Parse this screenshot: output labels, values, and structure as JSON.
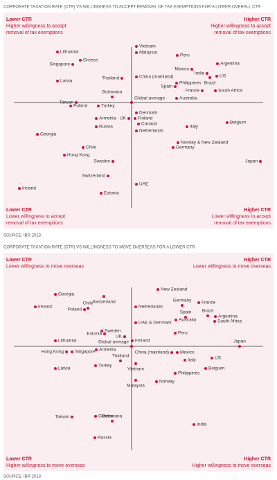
{
  "chart_data": [
    {
      "type": "scatter",
      "title": "CORPORATE TAXATION RATE (CTR) VS WILLINGNESS TO ACCEPT REMOVAL OF TAX EXEMPTIONS FOR A LOWER OVERALL CTR",
      "source": "SOURCE: IBR 2013",
      "color": "#d4124e",
      "xlim": [
        -185,
        205
      ],
      "ylim": [
        -182,
        130
      ],
      "quadrants": {
        "top_left": [
          "Lower CTR",
          "Higher willingness to accept",
          "removal of tax exemptions"
        ],
        "top_right": [
          "Higher CTR",
          "Higher willingness to accept",
          "removal of tax exemptions"
        ],
        "bottom_left": [
          "Lower CTR",
          "Lower willingness to accept",
          "removal of tax exemptions"
        ],
        "bottom_right": [
          "Higher CTR",
          "Lower willingness to accept",
          "removal of tax exemptions"
        ]
      },
      "labels": [
        "Vietnam",
        "Malaysia",
        "Peru",
        "Lithuania",
        "Greece",
        "Argentina",
        "Singapore",
        "Mexico",
        "India",
        "US",
        "Brazil",
        "Thailand",
        "China (mainland)",
        "Latvia",
        "Philippines",
        "Spain",
        "France",
        "South Africa",
        "Botswana",
        "Global average",
        "Australia",
        "Taiwan",
        "Poland",
        "Turkey",
        "Denmark",
        "Armenia",
        "UK",
        "Finland",
        "Canada",
        "Belgium",
        "Russia",
        "Italy",
        "Netherlands",
        "Georgia",
        "Norway & New Zealand",
        "Germany",
        "Chile",
        "Hong Kong",
        "Sweden",
        "Japan",
        "Switzerland",
        "UAE",
        "Ireland",
        "Estonia"
      ],
      "x": [
        7,
        7,
        66,
        -107,
        -74,
        124,
        -85,
        87,
        109,
        123,
        113,
        -14,
        7,
        -107,
        65,
        63,
        102,
        121,
        -28,
        0,
        65,
        -80,
        -88,
        -48,
        7,
        -51,
        -4,
        5,
        10,
        138,
        -51,
        80,
        7,
        -136,
        67,
        60,
        -70,
        -97,
        -27,
        186,
        -34,
        7,
        -162,
        -44
      ],
      "y": [
        81,
        72,
        68,
        73,
        61,
        56,
        55,
        48,
        42,
        38,
        36,
        35,
        37,
        31,
        28,
        23,
        17,
        17,
        8,
        0,
        6,
        0,
        -5,
        -5,
        -15,
        -23,
        -23,
        -23,
        -31,
        -29,
        -35,
        -35,
        -41,
        -46,
        -58,
        -65,
        -65,
        -76,
        -85,
        -85,
        -106,
        -118,
        -124,
        -131
      ]
    },
    {
      "type": "scatter",
      "title": "CORPORATE TAXATION RATE (CTR) VS WILLINGNESS TO MOVE OVERSEAS FOR A LOWER CTR",
      "source": "SOURCE: IBR 2013",
      "color": "#d4124e",
      "xlim": [
        -185,
        205
      ],
      "ylim": [
        -180,
        135
      ],
      "quadrants": {
        "top_left": [
          "Lower CTR",
          "Lower willingness to move overseas"
        ],
        "top_right": [
          "Higher CTR",
          "Lower willingness to move overseas"
        ],
        "bottom_left": [
          "Lower CTR",
          "Higher willingness to move overseas"
        ],
        "bottom_right": [
          "Higher CTR",
          "Higher willingness to move overseas"
        ]
      },
      "labels": [
        "New Zealand",
        "Georgia",
        "Switzerland",
        "Germany",
        "France",
        "Netherlands",
        "Ireland",
        "Chile",
        "Poland",
        "Spain",
        "Brazil",
        "Argentina",
        "Australia",
        "UAE & Denmark",
        "South Africa",
        "Sweden",
        "Estonia",
        "UK",
        "Peru",
        "Lithuania",
        "Finland",
        "Global average",
        "Japan",
        "Armenia",
        "Hong Kong",
        "Singapore",
        "China (mainland)",
        "Mexico",
        "US",
        "Thailand",
        "Italy",
        "Turkey",
        "Latvia",
        "Vietnam",
        "Belgium",
        "Philippines",
        "Norway",
        "Malaysia",
        "Botswana",
        "Taiwan",
        "Greece",
        "India",
        "Russia"
      ],
      "x": [
        38,
        -110,
        -40,
        73,
        97,
        6,
        -139,
        -63,
        -68,
        78,
        110,
        121,
        64,
        6,
        120,
        -43,
        -39,
        -10,
        63,
        -110,
        1,
        0,
        156,
        -51,
        -94,
        -86,
        58,
        66,
        116,
        -16,
        77,
        -52,
        -110,
        6,
        107,
        63,
        36,
        6,
        -28,
        -86,
        -52,
        90,
        -53
      ],
      "y": [
        82,
        75,
        72,
        59,
        63,
        57,
        57,
        55,
        53,
        42,
        44,
        43,
        38,
        34,
        36,
        22,
        18,
        14,
        19,
        8,
        8,
        0,
        0,
        -5,
        -8,
        -8,
        -9,
        -9,
        -17,
        -21,
        -20,
        -28,
        -32,
        -25,
        -32,
        -39,
        -51,
        -49,
        -108,
        -102,
        -101,
        -113,
        -132
      ]
    }
  ]
}
